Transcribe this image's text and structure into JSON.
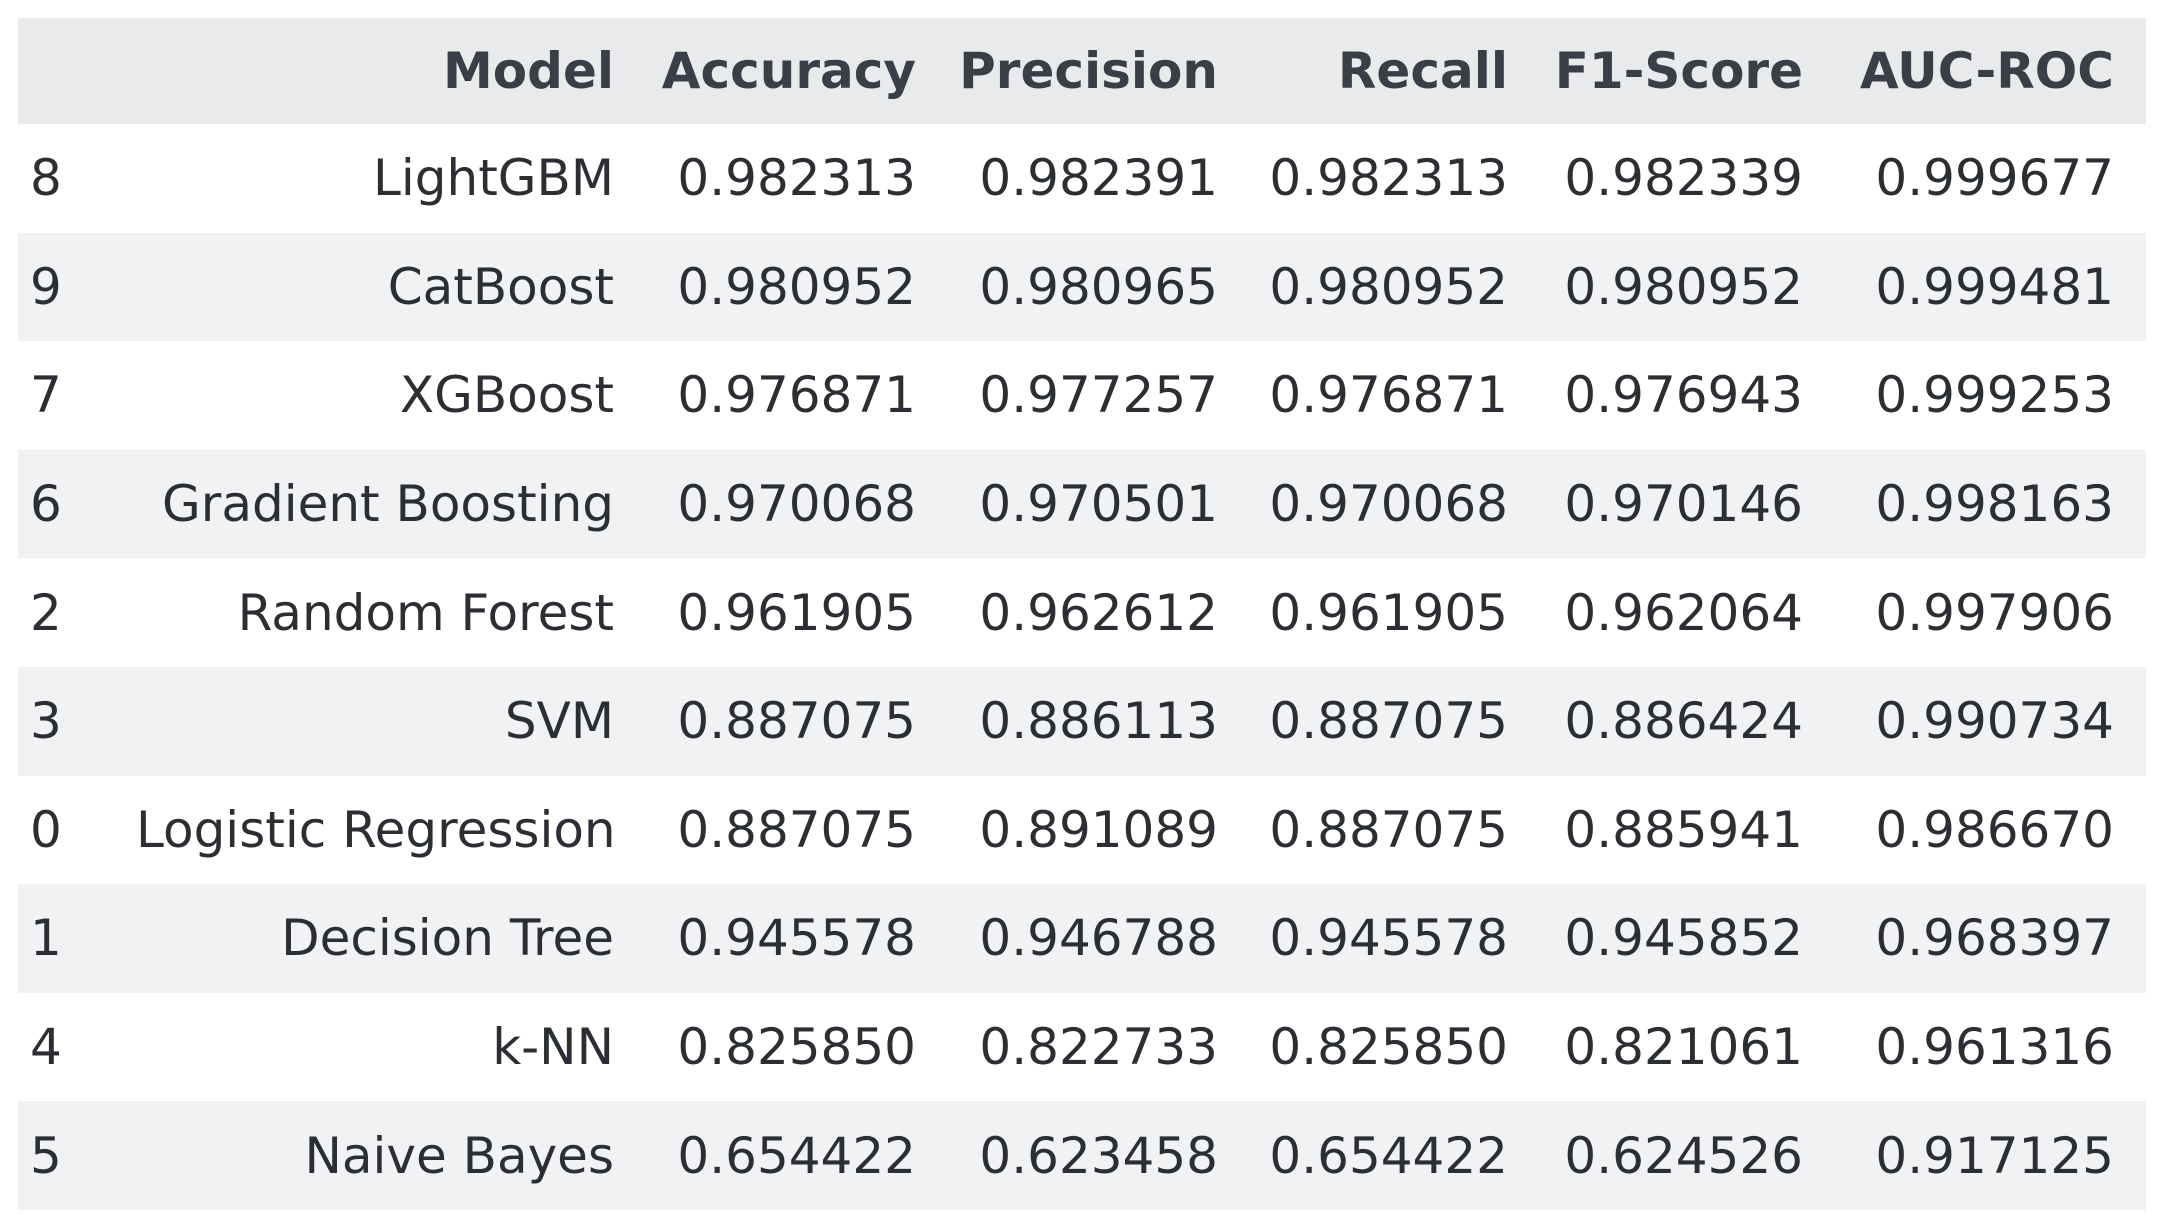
{
  "chart_data": {
    "type": "table",
    "columns": [
      "",
      "Model",
      "Accuracy",
      "Precision",
      "Recall",
      "F1-Score",
      "AUC-ROC"
    ],
    "rows": [
      {
        "index": "8",
        "model": "LightGBM",
        "accuracy": "0.982313",
        "precision": "0.982391",
        "recall": "0.982313",
        "f1": "0.982339",
        "auc": "0.999677"
      },
      {
        "index": "9",
        "model": "CatBoost",
        "accuracy": "0.980952",
        "precision": "0.980965",
        "recall": "0.980952",
        "f1": "0.980952",
        "auc": "0.999481"
      },
      {
        "index": "7",
        "model": "XGBoost",
        "accuracy": "0.976871",
        "precision": "0.977257",
        "recall": "0.976871",
        "f1": "0.976943",
        "auc": "0.999253"
      },
      {
        "index": "6",
        "model": "Gradient Boosting",
        "accuracy": "0.970068",
        "precision": "0.970501",
        "recall": "0.970068",
        "f1": "0.970146",
        "auc": "0.998163"
      },
      {
        "index": "2",
        "model": "Random Forest",
        "accuracy": "0.961905",
        "precision": "0.962612",
        "recall": "0.961905",
        "f1": "0.962064",
        "auc": "0.997906"
      },
      {
        "index": "3",
        "model": "SVM",
        "accuracy": "0.887075",
        "precision": "0.886113",
        "recall": "0.887075",
        "f1": "0.886424",
        "auc": "0.990734"
      },
      {
        "index": "0",
        "model": "Logistic Regression",
        "accuracy": "0.887075",
        "precision": "0.891089",
        "recall": "0.887075",
        "f1": "0.885941",
        "auc": "0.986670"
      },
      {
        "index": "1",
        "model": "Decision Tree",
        "accuracy": "0.945578",
        "precision": "0.946788",
        "recall": "0.945578",
        "f1": "0.945852",
        "auc": "0.968397"
      },
      {
        "index": "4",
        "model": "k-NN",
        "accuracy": "0.825850",
        "precision": "0.822733",
        "recall": "0.825850",
        "f1": "0.821061",
        "auc": "0.961316"
      },
      {
        "index": "5",
        "model": "Naive Bayes",
        "accuracy": "0.654422",
        "precision": "0.623458",
        "recall": "0.654422",
        "f1": "0.624526",
        "auc": "0.917125"
      }
    ],
    "colors": {
      "header_bg": "#e9eaec",
      "stripe_bg": "#f1f2f4",
      "text": "#2b2f33"
    }
  }
}
